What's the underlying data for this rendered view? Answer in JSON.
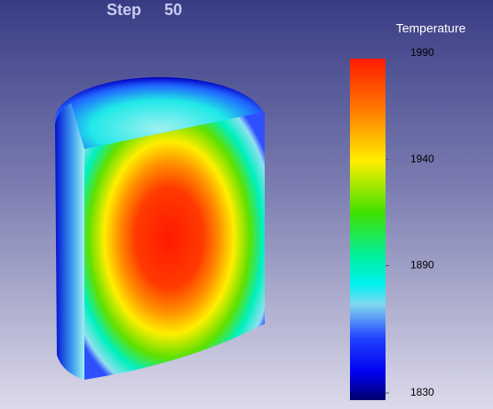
{
  "header": {
    "step_label": "Step",
    "step": 50
  },
  "colorbar": {
    "title": "Temperature",
    "range": [
      1830,
      1990
    ],
    "ticks": [
      1830,
      1890,
      1940,
      1990
    ]
  }
}
